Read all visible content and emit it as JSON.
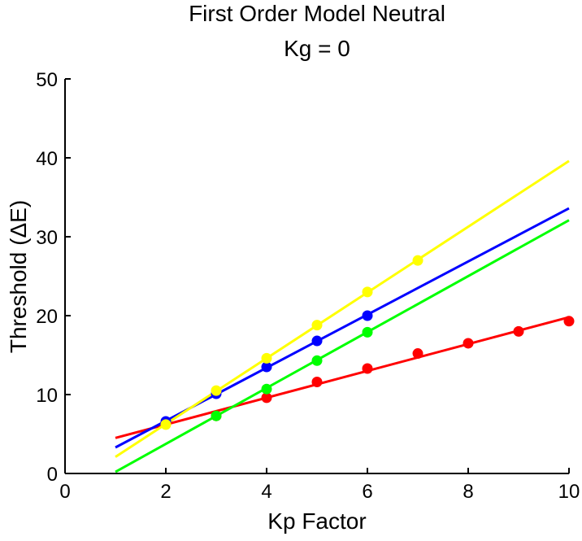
{
  "chart_data": {
    "type": "line",
    "title": "First Order Model Neutral",
    "subtitle": "Kg = 0",
    "xlabel": "Kp Factor",
    "ylabel": "Threshold (ΔE)",
    "xlim": [
      0,
      10
    ],
    "ylim": [
      0,
      50
    ],
    "xticks": [
      0,
      2,
      4,
      6,
      8,
      10
    ],
    "yticks": [
      0,
      10,
      20,
      30,
      40,
      50
    ],
    "grid": false,
    "series": [
      {
        "color": "#ff0000",
        "points": [
          [
            2,
            6.3
          ],
          [
            3,
            7.3
          ],
          [
            4,
            9.6
          ],
          [
            5,
            11.6
          ],
          [
            6,
            13.3
          ],
          [
            7,
            15.2
          ],
          [
            8,
            16.5
          ],
          [
            9,
            18.0
          ],
          [
            10,
            19.3
          ]
        ],
        "fit": [
          [
            1,
            4.5
          ],
          [
            10,
            19.8
          ]
        ]
      },
      {
        "color": "#00ff00",
        "points": [
          [
            3,
            7.3
          ],
          [
            4,
            10.7
          ],
          [
            5,
            14.3
          ],
          [
            6,
            17.9
          ]
        ],
        "fit": [
          [
            1,
            0.2
          ],
          [
            10,
            32.1
          ]
        ]
      },
      {
        "color": "#0000ff",
        "points": [
          [
            2,
            6.6
          ],
          [
            3,
            10.1
          ],
          [
            4,
            13.5
          ],
          [
            5,
            16.8
          ],
          [
            6,
            20.0
          ]
        ],
        "fit": [
          [
            1,
            3.3
          ],
          [
            10,
            33.6
          ]
        ]
      },
      {
        "color": "#ffff00",
        "points": [
          [
            2,
            6.2
          ],
          [
            3,
            10.5
          ],
          [
            4,
            14.6
          ],
          [
            5,
            18.8
          ],
          [
            6,
            23.0
          ],
          [
            7,
            27.0
          ]
        ],
        "fit": [
          [
            1,
            2.1
          ],
          [
            10,
            39.6
          ]
        ]
      }
    ]
  }
}
